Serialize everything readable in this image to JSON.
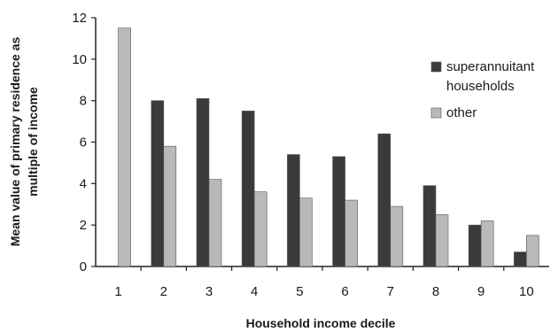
{
  "chart_data": {
    "type": "bar",
    "title": "",
    "xlabel": "Household income decile",
    "ylabel_lines": [
      "Mean value of primary residence as",
      "multiple of income"
    ],
    "categories": [
      "1",
      "2",
      "3",
      "4",
      "5",
      "6",
      "7",
      "8",
      "9",
      "10"
    ],
    "ylim": [
      0,
      12
    ],
    "yticks": [
      0,
      2,
      4,
      6,
      8,
      10,
      12
    ],
    "grid": false,
    "legend_position": "right",
    "series": [
      {
        "name_lines": [
          "superannuitant",
          "households"
        ],
        "color": "#3a3a3a",
        "values": [
          null,
          8.0,
          8.1,
          7.5,
          5.4,
          5.3,
          6.4,
          3.9,
          2.0,
          0.7
        ]
      },
      {
        "name_lines": [
          "other"
        ],
        "color": "#b9b9b9",
        "values": [
          11.5,
          5.8,
          4.2,
          3.6,
          3.3,
          3.2,
          2.9,
          2.5,
          2.2,
          1.5
        ]
      }
    ]
  }
}
